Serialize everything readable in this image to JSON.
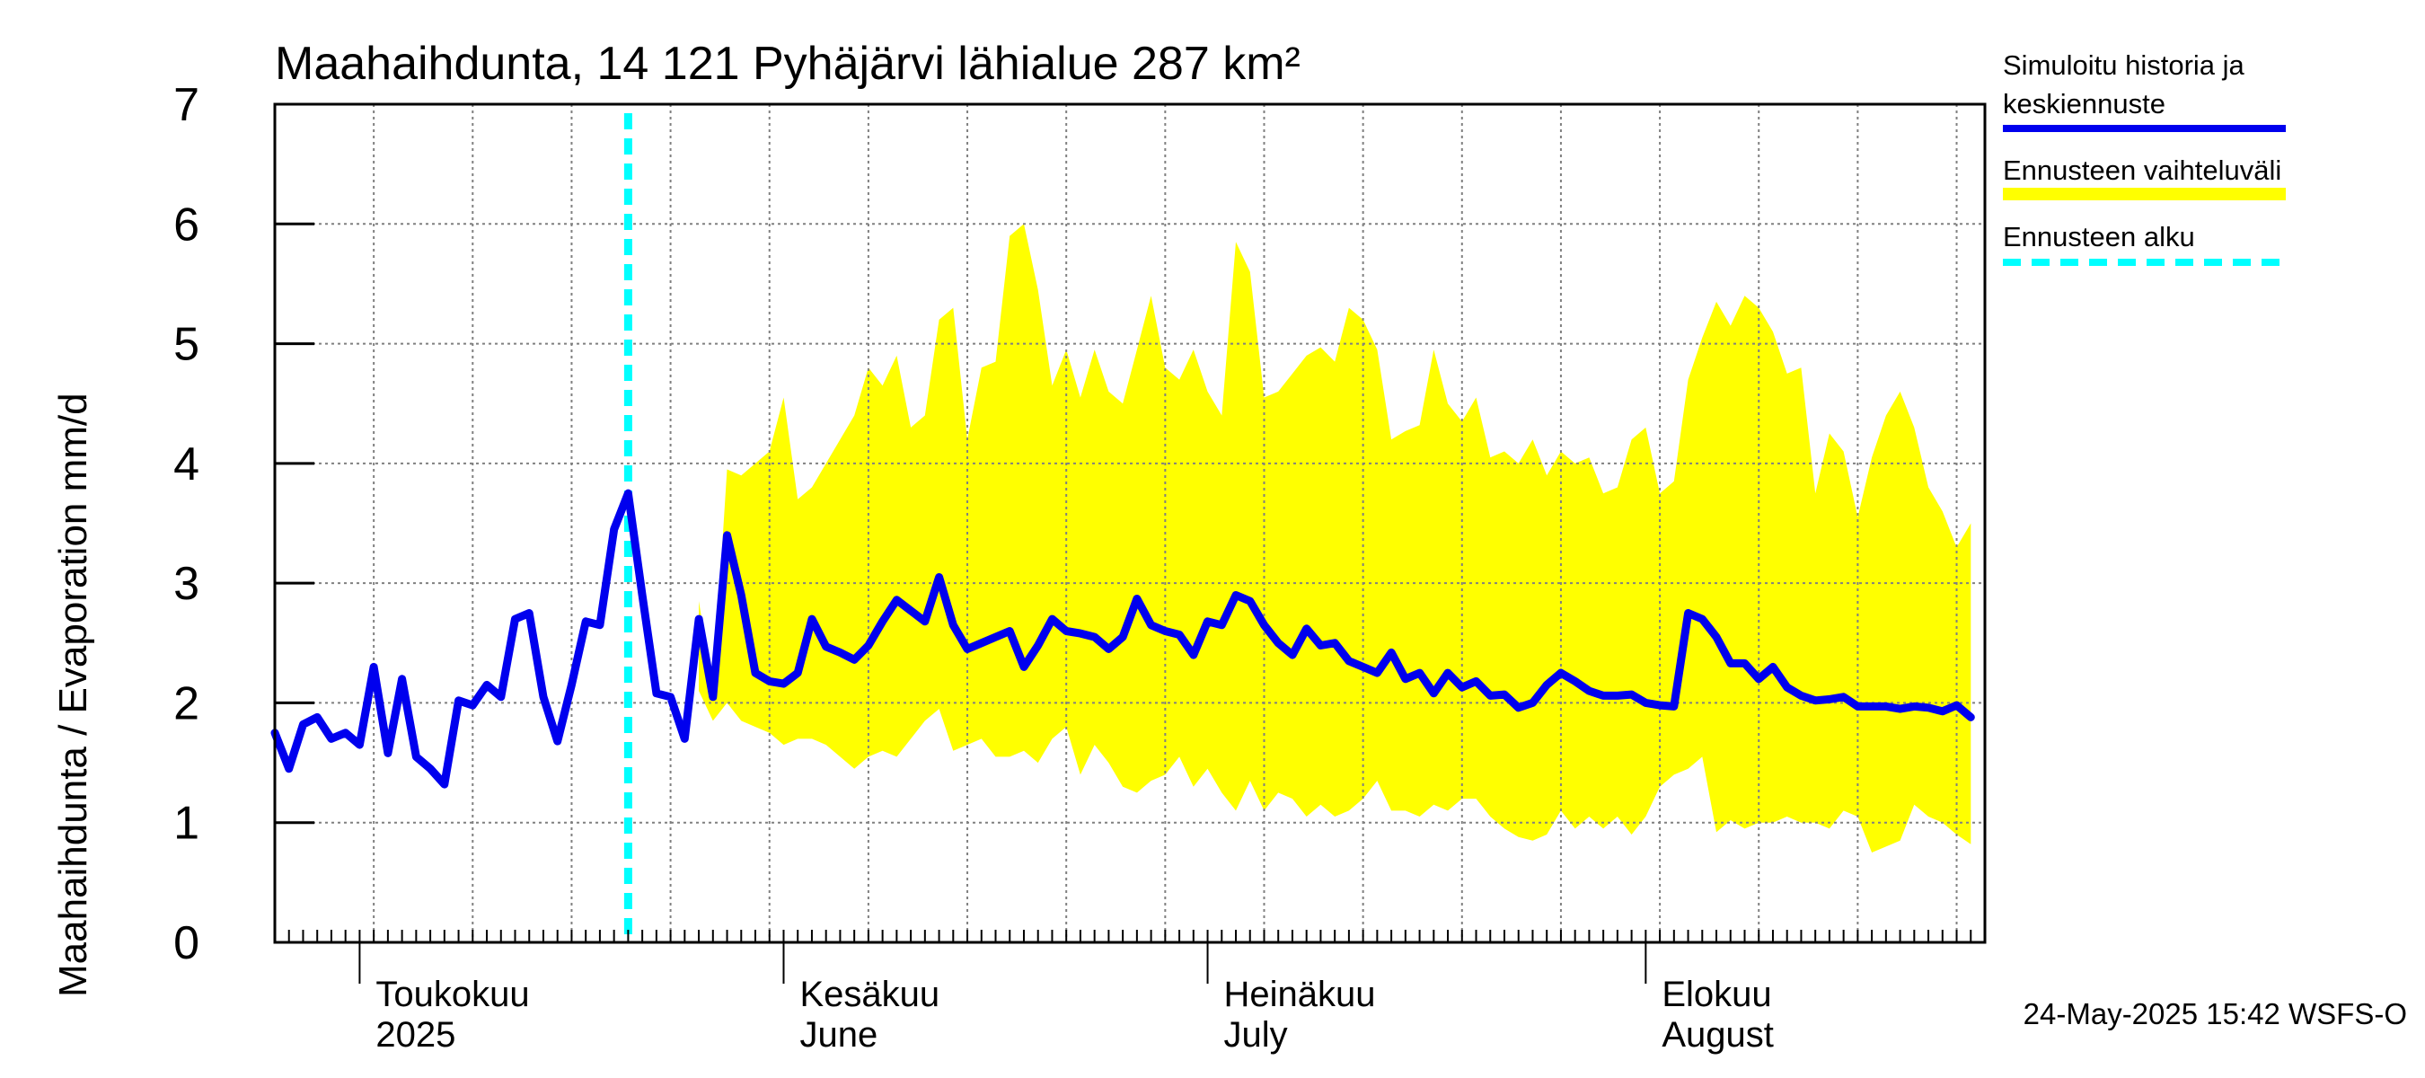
{
  "title": "Maahaihdunta, 14 121 Pyhäjärvi lähialue 287 km²",
  "timestamp": "24-May-2025 15:42 WSFS-O",
  "legend": {
    "simulated_line1": "Simuloitu historia ja",
    "simulated_line2": "keskiennuste",
    "range": "Ennusteen vaihteluväli",
    "forecast_start": "Ennusteen alku"
  },
  "colors": {
    "simulated": "#0000ee",
    "range": "#ffff00",
    "forecast_start": "#00ffff",
    "grid": "#808080"
  },
  "chart_data": {
    "type": "line",
    "title": "Maahaihdunta, 14 121 Pyhäjärvi lähialue 287 km²",
    "ylabel": "Maahaihdunta / Evaporation   mm/d",
    "xlabel": "",
    "ylim": [
      0,
      7
    ],
    "yticks": [
      "0",
      "1",
      "2",
      "3",
      "4",
      "5",
      "6",
      "7"
    ],
    "x_start_date": "2025-04-07",
    "x_end_date": "2025-08-31",
    "forecast_start_day": 25,
    "months": [
      {
        "name": "Toukokuu",
        "en": "2025",
        "start_day": 6,
        "end_day": 36
      },
      {
        "name": "Kesäkuu",
        "en": "June",
        "start_day": 36,
        "end_day": 66
      },
      {
        "name": "Heinäkuu",
        "en": "July",
        "start_day": 66,
        "end_day": 97
      },
      {
        "name": "Elokuu",
        "en": "August",
        "start_day": 97,
        "end_day": 128
      }
    ],
    "simulated": [
      [
        0,
        1.75
      ],
      [
        1,
        1.45
      ],
      [
        2,
        1.82
      ],
      [
        3,
        1.88
      ],
      [
        4,
        1.7
      ],
      [
        5,
        1.75
      ],
      [
        6,
        1.65
      ],
      [
        7,
        2.3
      ],
      [
        8,
        1.58
      ],
      [
        9,
        2.2
      ],
      [
        10,
        1.55
      ],
      [
        11,
        1.45
      ],
      [
        12,
        1.32
      ],
      [
        13,
        2.02
      ],
      [
        14,
        1.98
      ],
      [
        15,
        2.15
      ],
      [
        16,
        2.05
      ],
      [
        17,
        2.7
      ],
      [
        18,
        2.75
      ],
      [
        19,
        2.05
      ],
      [
        20,
        1.68
      ],
      [
        21,
        2.15
      ],
      [
        22,
        2.68
      ],
      [
        23,
        2.65
      ],
      [
        24,
        3.45
      ],
      [
        25,
        3.75
      ],
      [
        26,
        2.9
      ],
      [
        27,
        2.08
      ],
      [
        28,
        2.05
      ],
      [
        29,
        1.7
      ],
      [
        30,
        2.7
      ],
      [
        31,
        2.05
      ],
      [
        32,
        3.4
      ],
      [
        33,
        2.9
      ],
      [
        34,
        2.25
      ],
      [
        35,
        2.18
      ],
      [
        36,
        2.16
      ],
      [
        37,
        2.25
      ],
      [
        38,
        2.7
      ],
      [
        39,
        2.47
      ],
      [
        40,
        2.42
      ],
      [
        41,
        2.36
      ],
      [
        42,
        2.48
      ],
      [
        43,
        2.68
      ],
      [
        44,
        2.86
      ],
      [
        45,
        2.77
      ],
      [
        46,
        2.68
      ],
      [
        47,
        3.05
      ],
      [
        48,
        2.65
      ],
      [
        49,
        2.45
      ],
      [
        50,
        2.5
      ],
      [
        51,
        2.55
      ],
      [
        52,
        2.6
      ],
      [
        53,
        2.3
      ],
      [
        54,
        2.48
      ],
      [
        55,
        2.7
      ],
      [
        56,
        2.6
      ],
      [
        57,
        2.58
      ],
      [
        58,
        2.55
      ],
      [
        59,
        2.45
      ],
      [
        60,
        2.55
      ],
      [
        61,
        2.87
      ],
      [
        62,
        2.65
      ],
      [
        63,
        2.6
      ],
      [
        64,
        2.57
      ],
      [
        65,
        2.4
      ],
      [
        66,
        2.68
      ],
      [
        67,
        2.65
      ],
      [
        68,
        2.9
      ],
      [
        69,
        2.85
      ],
      [
        70,
        2.65
      ],
      [
        71,
        2.5
      ],
      [
        72,
        2.4
      ],
      [
        73,
        2.62
      ],
      [
        74,
        2.48
      ],
      [
        75,
        2.5
      ],
      [
        76,
        2.35
      ],
      [
        77,
        2.3
      ],
      [
        78,
        2.25
      ],
      [
        79,
        2.42
      ],
      [
        80,
        2.2
      ],
      [
        81,
        2.25
      ],
      [
        82,
        2.08
      ],
      [
        83,
        2.25
      ],
      [
        84,
        2.13
      ],
      [
        85,
        2.18
      ],
      [
        86,
        2.06
      ],
      [
        87,
        2.07
      ],
      [
        88,
        1.96
      ],
      [
        89,
        2.0
      ],
      [
        90,
        2.15
      ],
      [
        91,
        2.25
      ],
      [
        92,
        2.18
      ],
      [
        93,
        2.1
      ],
      [
        94,
        2.06
      ],
      [
        95,
        2.06
      ],
      [
        96,
        2.07
      ],
      [
        97,
        2.0
      ],
      [
        98,
        1.98
      ],
      [
        99,
        1.97
      ],
      [
        100,
        2.75
      ],
      [
        101,
        2.7
      ],
      [
        102,
        2.55
      ],
      [
        103,
        2.33
      ],
      [
        104,
        2.33
      ],
      [
        105,
        2.2
      ],
      [
        106,
        2.3
      ],
      [
        107,
        2.13
      ],
      [
        108,
        2.06
      ],
      [
        109,
        2.02
      ],
      [
        110,
        2.03
      ],
      [
        111,
        2.05
      ],
      [
        112,
        1.97
      ],
      [
        113,
        1.97
      ],
      [
        114,
        1.97
      ],
      [
        115,
        1.95
      ],
      [
        116,
        1.97
      ],
      [
        117,
        1.96
      ],
      [
        118,
        1.93
      ],
      [
        119,
        1.98
      ],
      [
        120,
        1.88
      ]
    ],
    "range_upper": [
      [
        30,
        2.85
      ],
      [
        31,
        2.1
      ],
      [
        32,
        3.95
      ],
      [
        33,
        3.9
      ],
      [
        34,
        4.0
      ],
      [
        35,
        4.1
      ],
      [
        36,
        4.55
      ],
      [
        37,
        3.7
      ],
      [
        38,
        3.8
      ],
      [
        39,
        4.0
      ],
      [
        40,
        4.2
      ],
      [
        41,
        4.4
      ],
      [
        42,
        4.8
      ],
      [
        43,
        4.65
      ],
      [
        44,
        4.9
      ],
      [
        45,
        4.3
      ],
      [
        46,
        4.4
      ],
      [
        47,
        5.2
      ],
      [
        48,
        5.3
      ],
      [
        49,
        4.2
      ],
      [
        50,
        4.8
      ],
      [
        51,
        4.85
      ],
      [
        52,
        5.9
      ],
      [
        53,
        6.0
      ],
      [
        54,
        5.45
      ],
      [
        55,
        4.65
      ],
      [
        56,
        4.95
      ],
      [
        57,
        4.55
      ],
      [
        58,
        4.95
      ],
      [
        59,
        4.6
      ],
      [
        60,
        4.5
      ],
      [
        61,
        4.95
      ],
      [
        62,
        5.4
      ],
      [
        63,
        4.8
      ],
      [
        64,
        4.7
      ],
      [
        65,
        4.95
      ],
      [
        66,
        4.6
      ],
      [
        67,
        4.4
      ],
      [
        68,
        5.85
      ],
      [
        69,
        5.6
      ],
      [
        70,
        4.55
      ],
      [
        71,
        4.6
      ],
      [
        72,
        4.75
      ],
      [
        73,
        4.9
      ],
      [
        74,
        4.97
      ],
      [
        75,
        4.85
      ],
      [
        76,
        5.3
      ],
      [
        77,
        5.2
      ],
      [
        78,
        4.95
      ],
      [
        79,
        4.2
      ],
      [
        80,
        4.27
      ],
      [
        81,
        4.32
      ],
      [
        82,
        4.95
      ],
      [
        83,
        4.5
      ],
      [
        84,
        4.35
      ],
      [
        85,
        4.55
      ],
      [
        86,
        4.05
      ],
      [
        87,
        4.1
      ],
      [
        88,
        4.0
      ],
      [
        89,
        4.2
      ],
      [
        90,
        3.9
      ],
      [
        91,
        4.1
      ],
      [
        92,
        4.0
      ],
      [
        93,
        4.05
      ],
      [
        94,
        3.75
      ],
      [
        95,
        3.8
      ],
      [
        96,
        4.2
      ],
      [
        97,
        4.3
      ],
      [
        98,
        3.75
      ],
      [
        99,
        3.85
      ],
      [
        100,
        4.7
      ],
      [
        101,
        5.05
      ],
      [
        102,
        5.35
      ],
      [
        103,
        5.15
      ],
      [
        104,
        5.4
      ],
      [
        105,
        5.3
      ],
      [
        106,
        5.1
      ],
      [
        107,
        4.75
      ],
      [
        108,
        4.8
      ],
      [
        109,
        3.75
      ],
      [
        110,
        4.25
      ],
      [
        111,
        4.1
      ],
      [
        112,
        3.55
      ],
      [
        113,
        4.05
      ],
      [
        114,
        4.4
      ],
      [
        115,
        4.6
      ],
      [
        116,
        4.3
      ],
      [
        117,
        3.8
      ],
      [
        118,
        3.6
      ],
      [
        119,
        3.3
      ],
      [
        120,
        3.5
      ]
    ],
    "range_lower": [
      [
        120,
        0.82
      ],
      [
        119,
        0.9
      ],
      [
        118,
        1.0
      ],
      [
        117,
        1.05
      ],
      [
        116,
        1.15
      ],
      [
        115,
        0.85
      ],
      [
        114,
        0.8
      ],
      [
        113,
        0.75
      ],
      [
        112,
        1.05
      ],
      [
        111,
        1.1
      ],
      [
        110,
        0.95
      ],
      [
        109,
        1.0
      ],
      [
        108,
        1.0
      ],
      [
        107,
        1.05
      ],
      [
        106,
        1.0
      ],
      [
        105,
        1.0
      ],
      [
        104,
        0.95
      ],
      [
        103,
        1.02
      ],
      [
        102,
        0.92
      ],
      [
        101,
        1.55
      ],
      [
        100,
        1.45
      ],
      [
        99,
        1.4
      ],
      [
        98,
        1.3
      ],
      [
        97,
        1.05
      ],
      [
        96,
        0.9
      ],
      [
        95,
        1.05
      ],
      [
        94,
        0.95
      ],
      [
        93,
        1.05
      ],
      [
        92,
        0.95
      ],
      [
        91,
        1.1
      ],
      [
        90,
        0.9
      ],
      [
        89,
        0.85
      ],
      [
        88,
        0.88
      ],
      [
        87,
        0.95
      ],
      [
        86,
        1.05
      ],
      [
        85,
        1.2
      ],
      [
        84,
        1.2
      ],
      [
        83,
        1.1
      ],
      [
        82,
        1.15
      ],
      [
        81,
        1.05
      ],
      [
        80,
        1.1
      ],
      [
        79,
        1.1
      ],
      [
        78,
        1.35
      ],
      [
        77,
        1.2
      ],
      [
        76,
        1.1
      ],
      [
        75,
        1.05
      ],
      [
        74,
        1.15
      ],
      [
        73,
        1.05
      ],
      [
        72,
        1.2
      ],
      [
        71,
        1.25
      ],
      [
        70,
        1.1
      ],
      [
        69,
        1.35
      ],
      [
        68,
        1.1
      ],
      [
        67,
        1.25
      ],
      [
        66,
        1.45
      ],
      [
        65,
        1.3
      ],
      [
        64,
        1.55
      ],
      [
        63,
        1.4
      ],
      [
        62,
        1.35
      ],
      [
        61,
        1.25
      ],
      [
        60,
        1.3
      ],
      [
        59,
        1.5
      ],
      [
        58,
        1.65
      ],
      [
        57,
        1.4
      ],
      [
        56,
        1.8
      ],
      [
        55,
        1.7
      ],
      [
        54,
        1.5
      ],
      [
        53,
        1.6
      ],
      [
        52,
        1.55
      ],
      [
        51,
        1.55
      ],
      [
        50,
        1.7
      ],
      [
        49,
        1.65
      ],
      [
        48,
        1.6
      ],
      [
        47,
        1.95
      ],
      [
        46,
        1.85
      ],
      [
        45,
        1.7
      ],
      [
        44,
        1.55
      ],
      [
        43,
        1.6
      ],
      [
        42,
        1.55
      ],
      [
        41,
        1.45
      ],
      [
        40,
        1.55
      ],
      [
        39,
        1.65
      ],
      [
        38,
        1.7
      ],
      [
        37,
        1.7
      ],
      [
        36,
        1.65
      ],
      [
        35,
        1.75
      ],
      [
        34,
        1.8
      ],
      [
        33,
        1.85
      ],
      [
        32,
        2.0
      ],
      [
        31,
        1.85
      ],
      [
        30,
        2.1
      ]
    ]
  }
}
